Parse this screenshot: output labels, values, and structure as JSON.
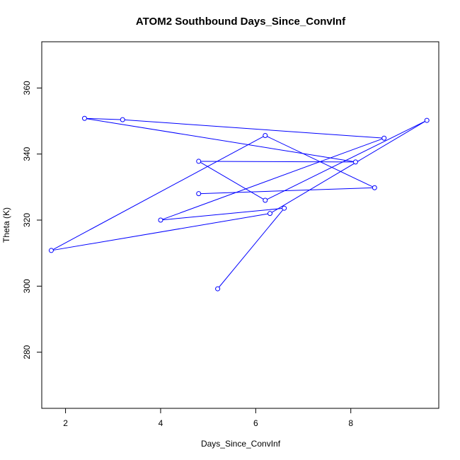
{
  "chart_data": {
    "type": "line",
    "title": "ATOM2 Southbound Days_Since_ConvInf",
    "xlabel": "Days_Since_ConvInf",
    "ylabel": "Theta (K)",
    "xlim": [
      1.5,
      9.85
    ],
    "ylim": [
      263,
      374
    ],
    "xticks": [
      2,
      4,
      6,
      8
    ],
    "yticks": [
      280,
      300,
      320,
      340,
      360
    ],
    "grid": false,
    "legend": "none",
    "color": "#0000ff",
    "markers": "open-circle",
    "points": [
      {
        "x": 5.2,
        "y": 299.2
      },
      {
        "x": 6.6,
        "y": 323.6
      },
      {
        "x": 4.0,
        "y": 320.0
      },
      {
        "x": 8.7,
        "y": 344.8
      },
      {
        "x": 3.2,
        "y": 350.4
      },
      {
        "x": 2.4,
        "y": 350.8
      },
      {
        "x": 8.1,
        "y": 337.6
      },
      {
        "x": 4.8,
        "y": 337.8
      },
      {
        "x": 6.2,
        "y": 326.0
      },
      {
        "x": 9.6,
        "y": 350.2
      },
      {
        "x": 6.3,
        "y": 322.0
      },
      {
        "x": 1.7,
        "y": 310.8
      },
      {
        "x": 6.2,
        "y": 345.6
      },
      {
        "x": 8.5,
        "y": 329.8
      },
      {
        "x": 4.8,
        "y": 328.0
      }
    ]
  }
}
